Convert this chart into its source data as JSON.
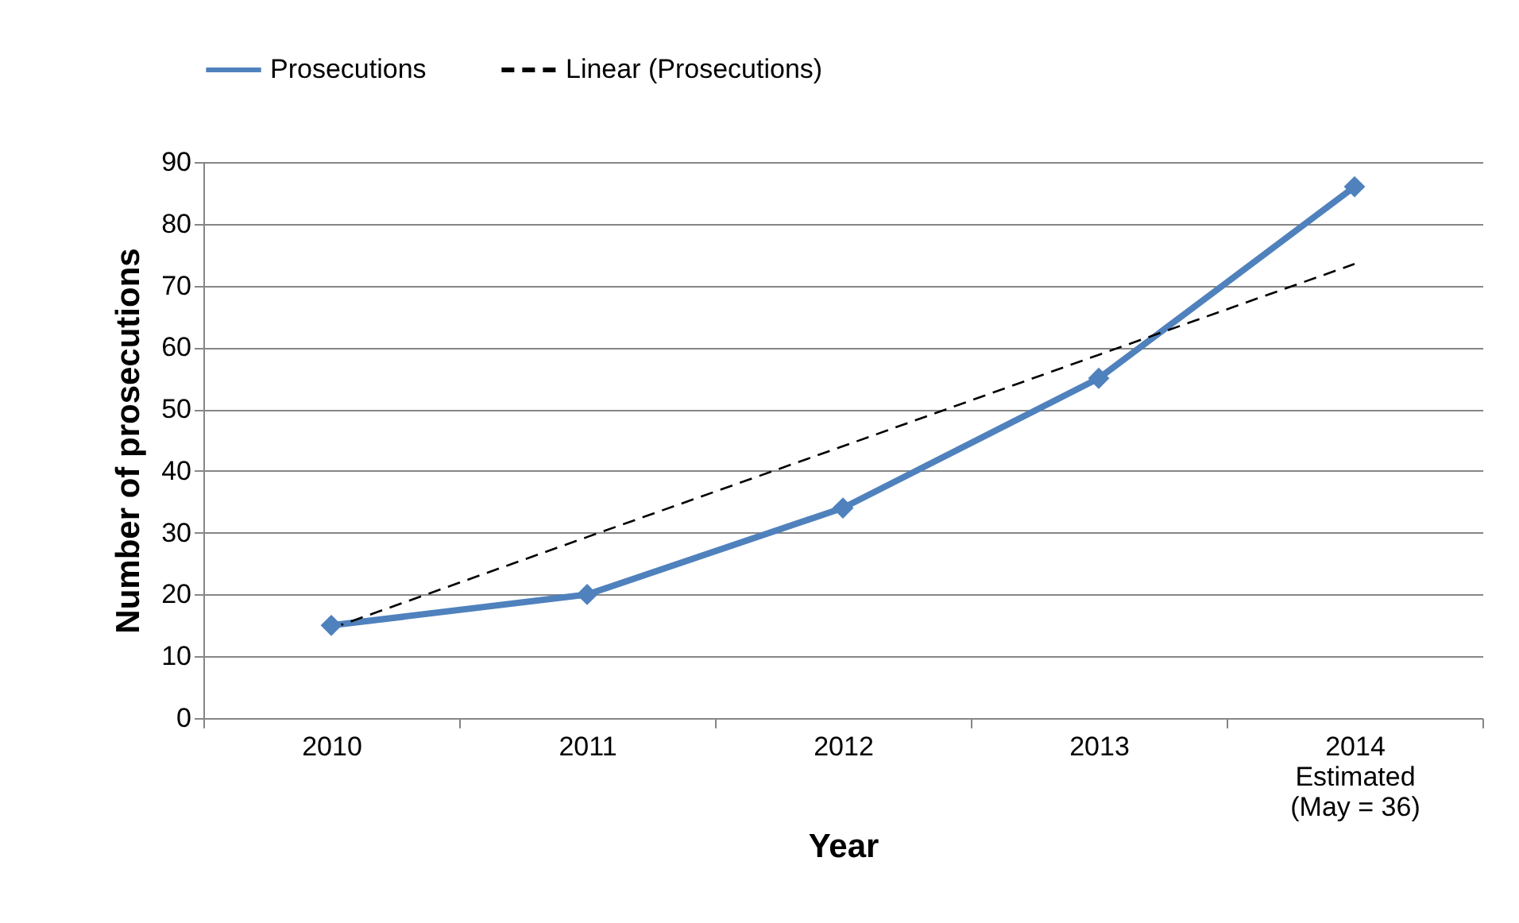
{
  "chart_data": {
    "type": "line",
    "xlabel": "Year",
    "ylabel": "Number of prosecutions",
    "categories": [
      "2010",
      "2011",
      "2012",
      "2013",
      "2014\nEstimated\n(May = 36)"
    ],
    "series": [
      {
        "name": "Prosecutions",
        "color": "#4f81bd",
        "values": [
          15,
          20,
          34,
          55,
          86
        ],
        "marker": "diamond",
        "line_style": "solid"
      },
      {
        "name": "Linear (Prosecutions)",
        "color": "#000000",
        "values": [
          14.5,
          29.3,
          44,
          58.8,
          73.5
        ],
        "marker": "none",
        "line_style": "dashed"
      }
    ],
    "ylim": [
      0,
      90
    ],
    "yticks": [
      0,
      10,
      20,
      30,
      40,
      50,
      60,
      70,
      80,
      90
    ],
    "grid": "y",
    "legend": "top"
  }
}
